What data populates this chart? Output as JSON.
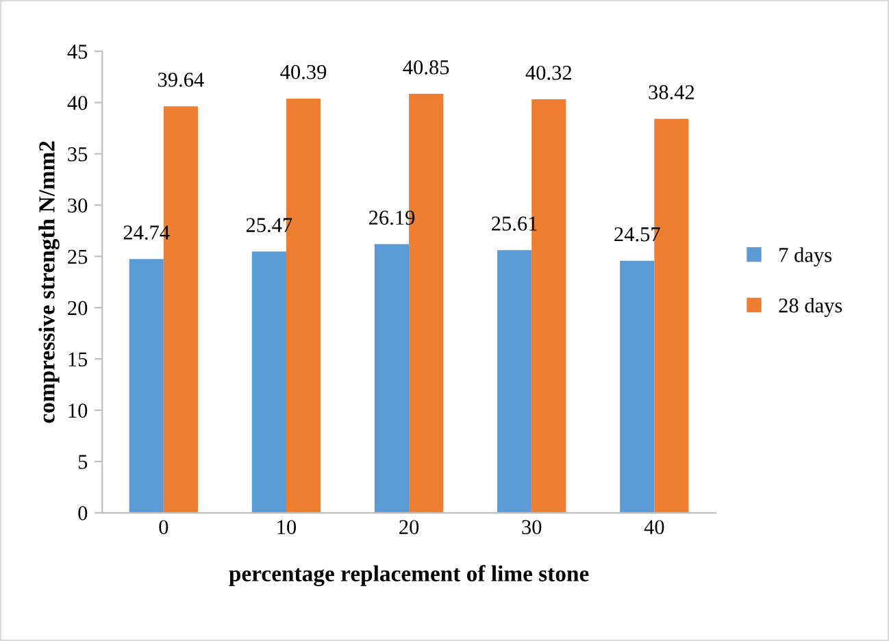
{
  "chart_data": {
    "type": "bar",
    "xlabel": "percentage replacement of lime stone",
    "ylabel": "compressive strength N/mm2",
    "categories": [
      "0",
      "10",
      "20",
      "30",
      "40"
    ],
    "series": [
      {
        "name": "7 days",
        "color": "#5b9bd5",
        "values": [
          24.74,
          25.47,
          26.19,
          25.61,
          24.57
        ]
      },
      {
        "name": "28 days",
        "color": "#ed7d31",
        "values": [
          39.64,
          40.39,
          40.85,
          40.32,
          38.42
        ]
      }
    ],
    "ylim": [
      0,
      45
    ],
    "yticks": [
      0,
      5,
      10,
      15,
      20,
      25,
      30,
      35,
      40,
      45
    ],
    "grid": false,
    "legend": "right",
    "data_labels": true
  }
}
